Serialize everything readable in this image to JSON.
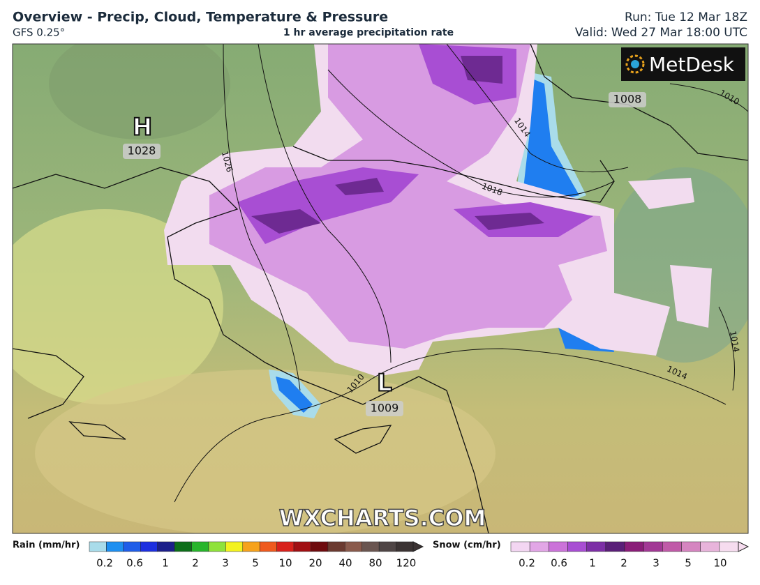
{
  "header": {
    "title": "Overview - Precip, Cloud, Temperature & Pressure",
    "model": "GFS 0.25°",
    "subtitle": "1 hr average precipitation rate",
    "run": "Run: Tue 12 Mar 18Z",
    "valid": "Valid: Wed 27 Mar 18:00 UTC"
  },
  "map": {
    "logo": "MetDesk",
    "watermark": "WXCHARTS.COM",
    "pressure_centers": [
      {
        "symbol": "H",
        "value": "1028"
      },
      {
        "symbol": "L",
        "value": "1009"
      },
      {
        "value": "1008"
      }
    ],
    "isobar_labels": [
      "1026",
      "1018",
      "1014",
      "1010",
      "1010",
      "1014",
      "1014"
    ]
  },
  "legend": {
    "rain": {
      "title": "Rain (mm/hr)",
      "labels": [
        0.2,
        0.6,
        1,
        2,
        3,
        5,
        10,
        20,
        40,
        80,
        120
      ]
    },
    "snow": {
      "title": "Snow (cm/hr)",
      "labels": [
        0.2,
        0.6,
        1,
        2,
        3,
        5,
        10
      ]
    }
  }
}
